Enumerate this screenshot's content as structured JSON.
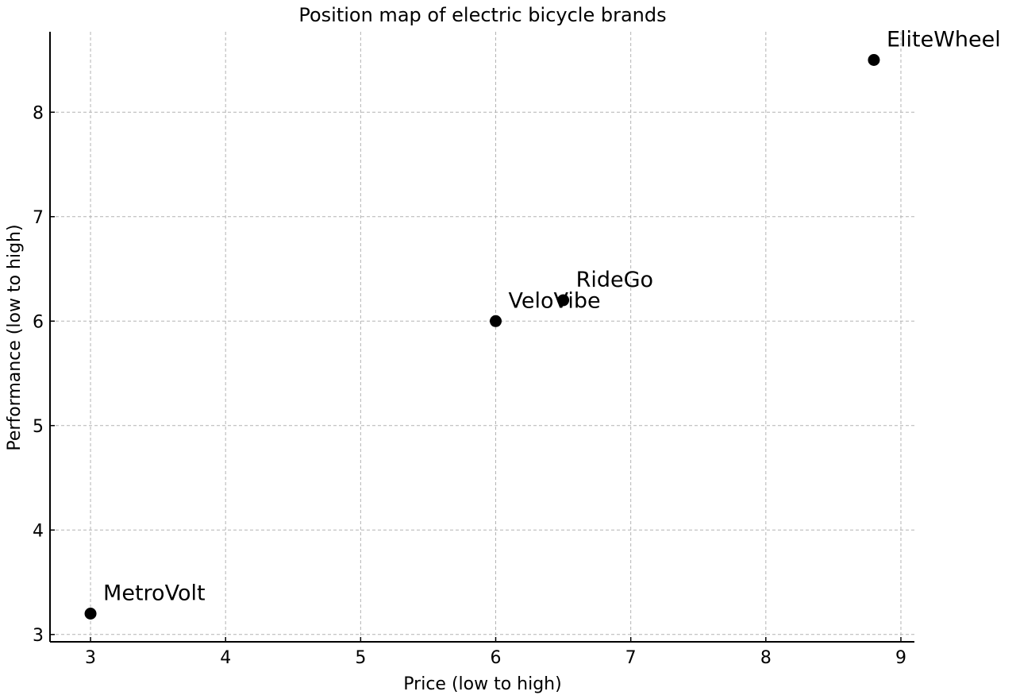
{
  "chart_data": {
    "type": "scatter",
    "title": "Position map of electric bicycle brands",
    "xlabel": "Price (low to high)",
    "ylabel": "Performance (low to high)",
    "xlim": [
      2.7,
      9.1
    ],
    "ylim": [
      2.93,
      8.77
    ],
    "xticks": [
      3,
      4,
      5,
      6,
      7,
      8,
      9
    ],
    "yticks": [
      3,
      4,
      5,
      6,
      7,
      8
    ],
    "grid": true,
    "marker_color": "#000000",
    "grid_color": "#b3b3b3",
    "points": [
      {
        "label": "MetroVolt",
        "x": 3.0,
        "y": 3.2
      },
      {
        "label": "VeloVibe",
        "x": 6.0,
        "y": 6.0
      },
      {
        "label": "RideGo",
        "x": 6.5,
        "y": 6.2
      },
      {
        "label": "EliteWheel",
        "x": 8.8,
        "y": 8.5
      }
    ]
  }
}
